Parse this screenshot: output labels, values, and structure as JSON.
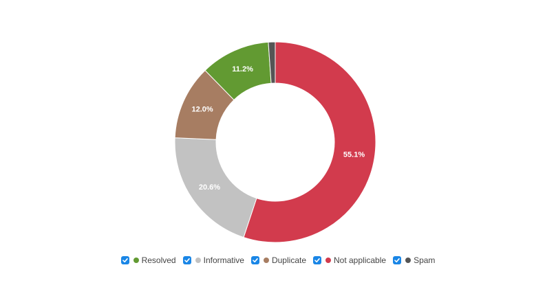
{
  "chart_data": {
    "type": "pie",
    "variant": "donut",
    "title": "",
    "series": [
      {
        "name": "Not applicable",
        "value": 55.1,
        "label": "55.1%",
        "color": "#d23b4d"
      },
      {
        "name": "Informative",
        "value": 20.6,
        "label": "20.6%",
        "color": "#c2c2c2"
      },
      {
        "name": "Duplicate",
        "value": 12.0,
        "label": "12.0%",
        "color": "#a77d62"
      },
      {
        "name": "Resolved",
        "value": 11.2,
        "label": "11.2%",
        "color": "#629a32"
      },
      {
        "name": "Spam",
        "value": 1.1,
        "label": "",
        "color": "#555555"
      }
    ],
    "legend_position": "bottom",
    "legend": [
      {
        "label": "Resolved",
        "color": "#629a32",
        "checked": true
      },
      {
        "label": "Informative",
        "color": "#c2c2c2",
        "checked": true
      },
      {
        "label": "Duplicate",
        "color": "#a77d62",
        "checked": true
      },
      {
        "label": "Not applicable",
        "color": "#d23b4d",
        "checked": true
      },
      {
        "label": "Spam",
        "color": "#555555",
        "checked": true
      }
    ]
  }
}
